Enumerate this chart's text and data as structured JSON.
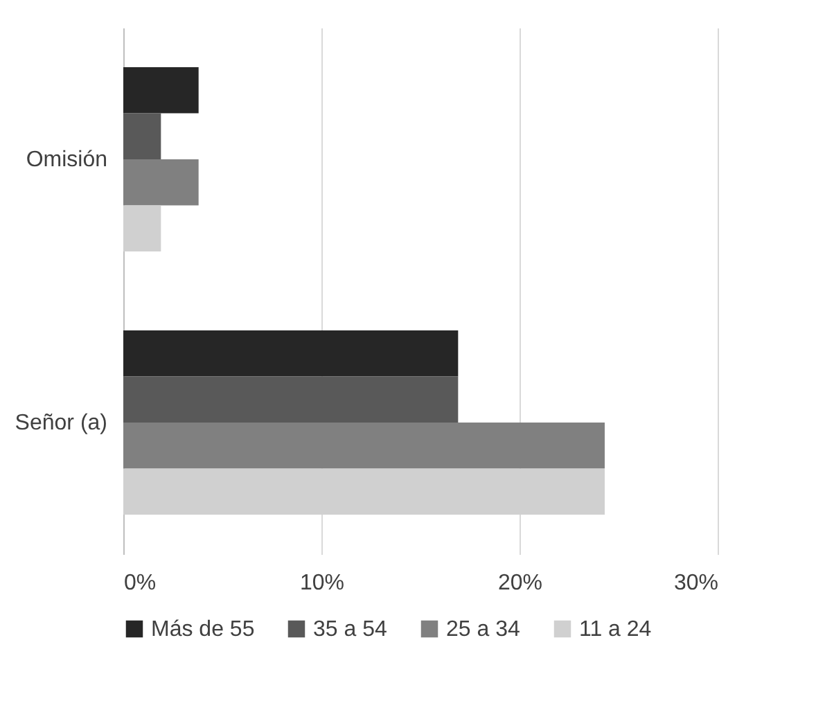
{
  "chart_data": {
    "type": "bar",
    "orientation": "horizontal",
    "categories": [
      "Omisión",
      "Señor (a)"
    ],
    "series": [
      {
        "name": "Más de 55",
        "color": "#262626",
        "values": [
          3.8,
          16.9
        ]
      },
      {
        "name": "35 a 54",
        "color": "#595959",
        "values": [
          1.9,
          16.9
        ]
      },
      {
        "name": "25 a 34",
        "color": "#808080",
        "values": [
          3.8,
          24.3
        ]
      },
      {
        "name": "11 a 24",
        "color": "#d0d0d0",
        "values": [
          1.9,
          24.3
        ]
      }
    ],
    "xlim": [
      0,
      30
    ],
    "xticks": [
      {
        "value": 0,
        "label": "0%"
      },
      {
        "value": 10,
        "label": "10%"
      },
      {
        "value": 20,
        "label": "20%"
      },
      {
        "value": 30,
        "label": "30%"
      }
    ],
    "grid": "x",
    "legend": "bottom"
  }
}
